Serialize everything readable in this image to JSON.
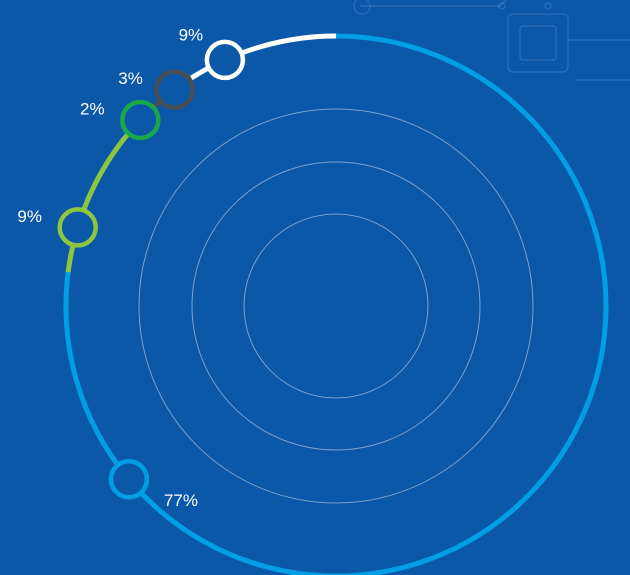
{
  "chart_data": {
    "type": "pie",
    "variant": "radial-ring",
    "series": [
      {
        "value": 77,
        "label": "77%",
        "color": "#009FE3"
      },
      {
        "value": 9,
        "label": "9%",
        "color": "#8DC63F"
      },
      {
        "value": 2,
        "label": "2%",
        "color": "#1BA84A"
      },
      {
        "value": 3,
        "label": "3%",
        "color": "#4A4F55"
      },
      {
        "value": 9,
        "label": "9%",
        "color": "#FFFFFF"
      }
    ]
  },
  "colors": {
    "background": "#0B57A8",
    "marker_fill": "#0B57A8",
    "inner_rings": "#FFFFFF"
  }
}
